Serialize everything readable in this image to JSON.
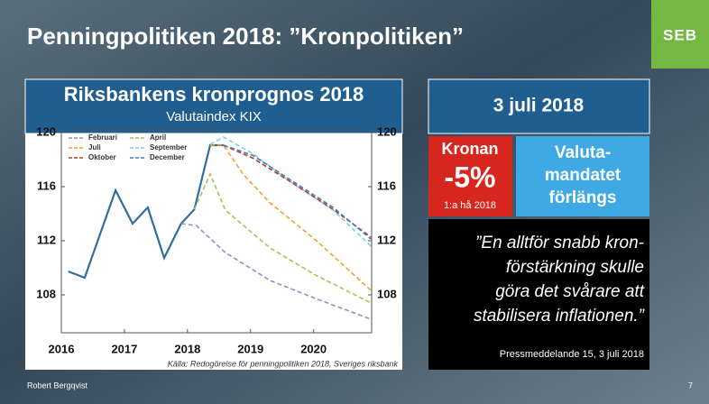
{
  "header": {
    "title": "Penningpolitiken 2018: ”Kronpolitiken”",
    "logo": "SEB"
  },
  "chart_data": {
    "type": "line",
    "title": "Riksbankens kronprognos 2018",
    "subtitle": "Valutaindex KIX",
    "source": "Källa: Redogörelse för penningpolitiken 2018, Sveriges riksbank",
    "xlim": [
      2016,
      2020.92
    ],
    "ylim": [
      105.2,
      120.2
    ],
    "xticks": [
      2016,
      2017,
      2018,
      2019,
      2020
    ],
    "yticks": [
      108,
      112,
      116,
      120
    ],
    "series": [
      {
        "color": "#2e6f9e",
        "style": "solid",
        "x": [
          2016.11,
          2016.37,
          2016.86,
          2017.13,
          2017.37,
          2017.63,
          2017.9,
          2018.11,
          2018.36,
          2018.57
        ],
        "values": [
          109.73,
          109.27,
          115.73,
          113.27,
          114.47,
          110.73,
          113.27,
          114.33,
          119.07,
          119.07
        ]
      },
      {
        "name": "Februari",
        "color": "#9c8ac6",
        "style": "dashed",
        "x": [
          2017.9,
          2018.14,
          2018.6,
          2019.31,
          2020.03,
          2020.91
        ],
        "values": [
          113.27,
          113.13,
          111.13,
          109.07,
          107.73,
          106.2
        ]
      },
      {
        "name": "April",
        "color": "#a8c35e",
        "style": "dashed",
        "x": [
          2018.11,
          2018.36,
          2018.6,
          2019.31,
          2020.03,
          2020.91
        ],
        "values": [
          114.33,
          116.93,
          114.27,
          111.47,
          109.47,
          107.4
        ]
      },
      {
        "name": "Juli",
        "color": "#f0a12e",
        "style": "dashed",
        "x": [
          2018.36,
          2018.57,
          2018.89,
          2019.31,
          2020.03,
          2020.91
        ],
        "values": [
          119.07,
          119.07,
          116.87,
          114.8,
          112.07,
          108.33
        ]
      },
      {
        "name": "September",
        "color": "#80d0d8",
        "style": "dashed",
        "x": [
          2018.36,
          2018.57,
          2019.03,
          2019.6,
          2020.31,
          2020.91
        ],
        "values": [
          119.13,
          119.67,
          118.47,
          116.47,
          114.27,
          111.6
        ]
      },
      {
        "name": "Oktober",
        "color": "#c0392b",
        "style": "dashed",
        "x": [
          2018.57,
          2019.03,
          2019.6,
          2020.31,
          2020.91
        ],
        "values": [
          119.07,
          118.13,
          116.47,
          114.33,
          112.27
        ]
      },
      {
        "name": "December",
        "color": "#3b7fc1",
        "style": "dashed",
        "x": [
          2018.57,
          2019.03,
          2019.6,
          2020.31,
          2020.91
        ],
        "values": [
          119.07,
          118.33,
          116.6,
          114.47,
          112.13
        ]
      }
    ]
  },
  "news": {
    "date": "3 juli 2018",
    "krona_label": "Kronan",
    "krona_change": "-5%",
    "krona_note": "1:a hå 2018",
    "mandate_lines": [
      "Valuta-",
      "mandatet",
      "förlängs"
    ],
    "quote_lines": [
      "”En alltför snabb kron-",
      "förstärkning skulle",
      "göra det svårare att",
      "stabilisera inflationen.”"
    ],
    "quote_source": "Pressmeddelande 15, 3 juli 2018"
  },
  "footer": {
    "author": "Robert Bergqvist",
    "page": "7"
  }
}
